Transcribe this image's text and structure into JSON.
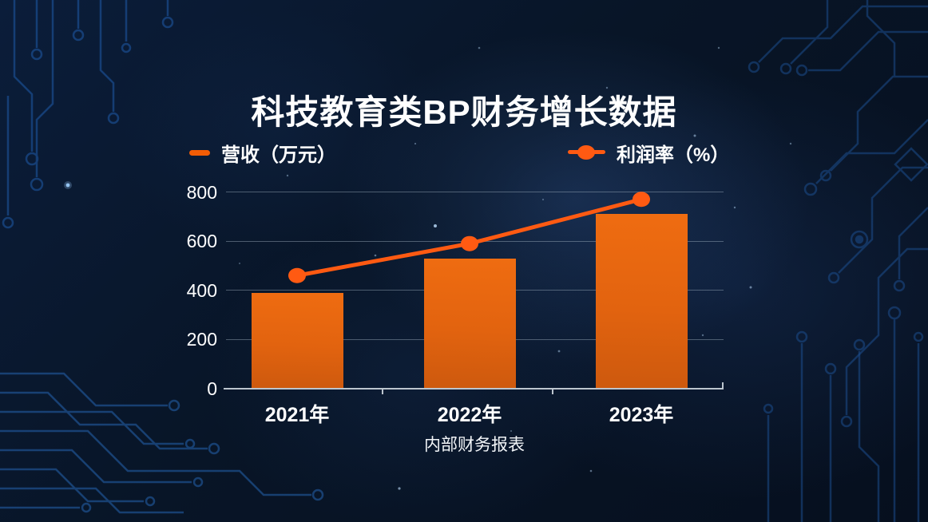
{
  "title": "科技教育类BP财务增长数据",
  "caption": "内部财务报表",
  "legend": {
    "revenue": {
      "label": "营收（万元）",
      "marker": "dash-icon",
      "color": "#f25c05"
    },
    "profit": {
      "label": "利润率（%）",
      "marker": "line-dot-icon",
      "color": "#ff5a12"
    }
  },
  "colors": {
    "background": "#081527",
    "bar_top": "#ef6c11",
    "bar_bottom": "#cd590e",
    "line": "#ff5a12",
    "grid": "rgba(170,185,200,0.42)",
    "axis": "#bcc5ce",
    "text": "#ffffff",
    "circuit": "#1d5296"
  },
  "chart_data": {
    "type": "bar+line",
    "title": "科技教育类BP财务增长数据",
    "categories": [
      "2021年",
      "2022年",
      "2023年"
    ],
    "series": [
      {
        "name": "营收（万元）",
        "type": "bar",
        "values": [
          390,
          530,
          710
        ]
      },
      {
        "name": "利润率（%）",
        "type": "line",
        "values_pct": [
          46,
          59,
          77
        ],
        "values_on_left_axis": [
          460,
          590,
          770
        ]
      }
    ],
    "xlabel": "内部财务报表",
    "ylabel": "",
    "ylim": [
      0,
      800
    ],
    "yticks": [
      0,
      200,
      400,
      600,
      800
    ],
    "grid": true,
    "legend_position": "top"
  }
}
